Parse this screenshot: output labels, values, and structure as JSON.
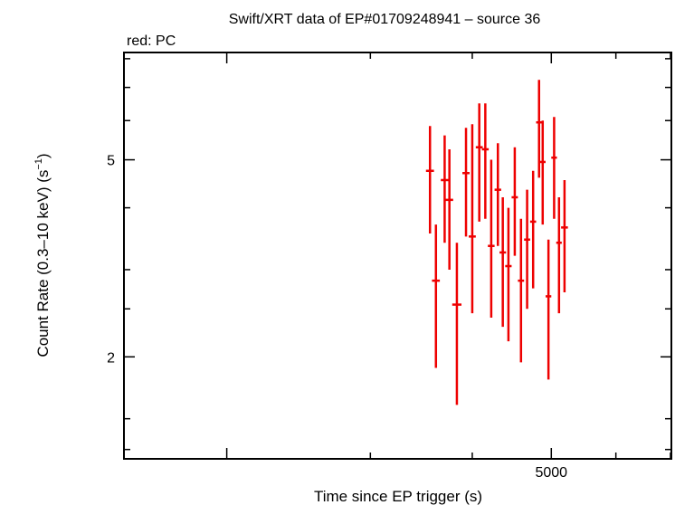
{
  "chart_data": {
    "type": "scatter",
    "title": "Swift/XRT data of EP#01709248941 – source 36",
    "subtitle": "red: PC",
    "xlabel": "Time since EP trigger (s)",
    "ylabel": "Count Rate (0.3–10 keV) (s",
    "ylabel_sup": "−1",
    "ylabel_close": ")",
    "x_scale": "log",
    "y_scale": "log",
    "xlim": [
      1500,
      7000
    ],
    "ylim": [
      1.25,
      8.2
    ],
    "x_tick_labels": [
      {
        "value": 5000,
        "label": "5000"
      }
    ],
    "y_tick_labels": [
      {
        "value": 2,
        "label": "2"
      },
      {
        "value": 5,
        "label": "5"
      }
    ],
    "series": [
      {
        "color": "#ee0000",
        "points": [
          {
            "x": 3550,
            "y": 4.75,
            "xerr": 40,
            "ylo": 3.55,
            "yhi": 5.85
          },
          {
            "x": 3610,
            "y": 2.85,
            "xerr": 40,
            "ylo": 1.9,
            "yhi": 3.7
          },
          {
            "x": 3700,
            "y": 4.55,
            "xerr": 40,
            "ylo": 3.4,
            "yhi": 5.6
          },
          {
            "x": 3750,
            "y": 4.15,
            "xerr": 40,
            "ylo": 3.0,
            "yhi": 5.25
          },
          {
            "x": 3830,
            "y": 2.55,
            "xerr": 50,
            "ylo": 1.6,
            "yhi": 3.4
          },
          {
            "x": 3930,
            "y": 4.7,
            "xerr": 40,
            "ylo": 3.5,
            "yhi": 5.8
          },
          {
            "x": 4000,
            "y": 3.5,
            "xerr": 40,
            "ylo": 2.45,
            "yhi": 5.9
          },
          {
            "x": 4080,
            "y": 5.3,
            "xerr": 40,
            "ylo": 3.75,
            "yhi": 6.5
          },
          {
            "x": 4150,
            "y": 5.25,
            "xerr": 40,
            "ylo": 3.8,
            "yhi": 6.5
          },
          {
            "x": 4220,
            "y": 3.35,
            "xerr": 40,
            "ylo": 2.4,
            "yhi": 5.0
          },
          {
            "x": 4300,
            "y": 4.35,
            "xerr": 40,
            "ylo": 3.35,
            "yhi": 5.4
          },
          {
            "x": 4360,
            "y": 3.25,
            "xerr": 40,
            "ylo": 2.3,
            "yhi": 4.2
          },
          {
            "x": 4430,
            "y": 3.05,
            "xerr": 40,
            "ylo": 2.15,
            "yhi": 4.0
          },
          {
            "x": 4510,
            "y": 4.2,
            "xerr": 40,
            "ylo": 3.2,
            "yhi": 5.3
          },
          {
            "x": 4590,
            "y": 2.85,
            "xerr": 40,
            "ylo": 1.95,
            "yhi": 3.8
          },
          {
            "x": 4670,
            "y": 3.45,
            "xerr": 40,
            "ylo": 2.5,
            "yhi": 4.35
          },
          {
            "x": 4750,
            "y": 3.75,
            "xerr": 40,
            "ylo": 2.75,
            "yhi": 4.75
          },
          {
            "x": 4830,
            "y": 5.95,
            "xerr": 40,
            "ylo": 4.6,
            "yhi": 7.25
          },
          {
            "x": 4880,
            "y": 4.95,
            "xerr": 40,
            "ylo": 3.7,
            "yhi": 6.0
          },
          {
            "x": 4960,
            "y": 2.65,
            "xerr": 40,
            "ylo": 1.8,
            "yhi": 3.45
          },
          {
            "x": 5040,
            "y": 5.05,
            "xerr": 40,
            "ylo": 3.8,
            "yhi": 6.1
          },
          {
            "x": 5110,
            "y": 3.4,
            "xerr": 40,
            "ylo": 2.45,
            "yhi": 4.2
          },
          {
            "x": 5190,
            "y": 3.65,
            "xerr": 50,
            "ylo": 2.7,
            "yhi": 4.55
          }
        ]
      }
    ]
  }
}
